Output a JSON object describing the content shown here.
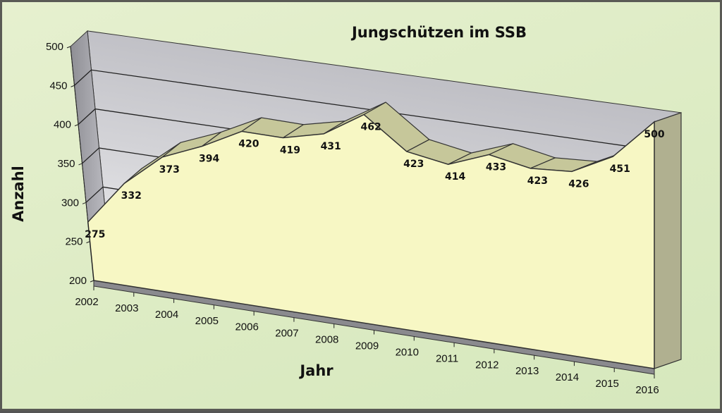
{
  "chart_data": {
    "type": "area",
    "title": "Jungschützen im SSB",
    "xlabel": "Jahr",
    "ylabel": "Anzahl",
    "categories": [
      "2002",
      "2003",
      "2004",
      "2005",
      "2006",
      "2007",
      "2008",
      "2009",
      "2010",
      "2011",
      "2012",
      "2013",
      "2014",
      "2015",
      "2016"
    ],
    "values": [
      275,
      332,
      373,
      394,
      420,
      419,
      431,
      462,
      423,
      414,
      433,
      423,
      426,
      451,
      500
    ],
    "ylim": [
      200,
      500
    ],
    "yticks": [
      "200",
      "250",
      "300",
      "350",
      "400",
      "450",
      "500"
    ],
    "grid": true,
    "three_d": true,
    "data_labels": true,
    "colors": {
      "area_front": "#f7f7c4",
      "area_top": "#c6c79a",
      "wall": "#c8c8cc",
      "floor": "#8a8a8e",
      "background": "#dfecc6"
    }
  }
}
